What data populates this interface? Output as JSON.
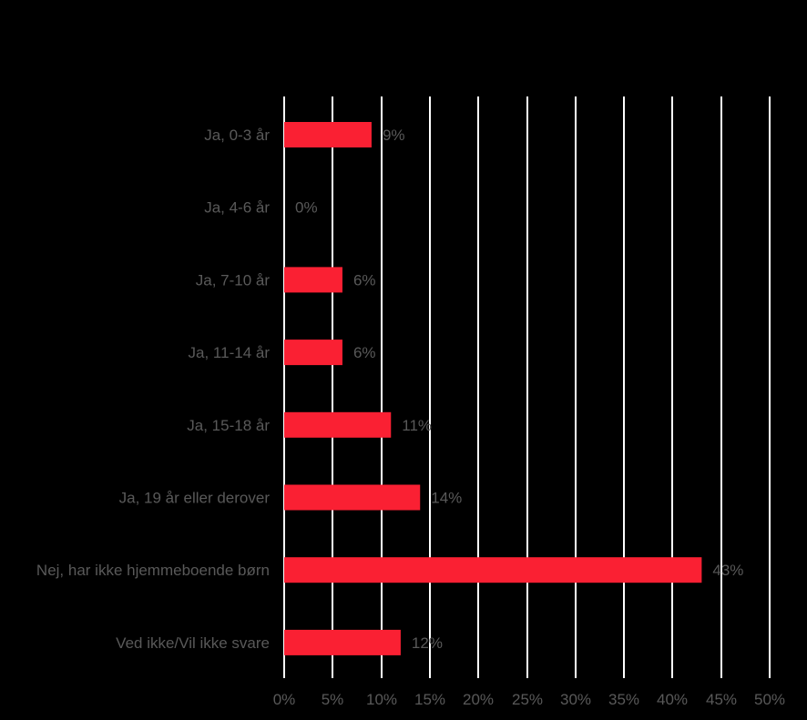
{
  "chart_data": {
    "type": "bar",
    "orientation": "horizontal",
    "categories": [
      "Ja, 0-3 år",
      "Ja, 4-6 år",
      "Ja, 7-10 år",
      "Ja, 11-14 år",
      "Ja, 15-18 år",
      "Ja, 19 år eller derover",
      "Nej, har ikke hjemmeboende børn",
      "Ved ikke/Vil ikke svare"
    ],
    "values": [
      9,
      0,
      6,
      6,
      11,
      14,
      43,
      12
    ],
    "value_labels": [
      "9%",
      "0%",
      "6%",
      "6%",
      "11%",
      "14%",
      "43%",
      "12%"
    ],
    "xlim": [
      0,
      50
    ],
    "x_ticks": [
      0,
      5,
      10,
      15,
      20,
      25,
      30,
      35,
      40,
      45,
      50
    ],
    "x_tick_labels": [
      "0%",
      "5%",
      "10%",
      "15%",
      "20%",
      "25%",
      "30%",
      "35%",
      "40%",
      "45%",
      "50%"
    ],
    "title": "",
    "xlabel": "",
    "ylabel": "",
    "grid": "vertical",
    "legend": "none",
    "colors": {
      "bar": "#fa2033",
      "background": "#000000",
      "grid": "#ffffff",
      "text": "#595959"
    }
  }
}
